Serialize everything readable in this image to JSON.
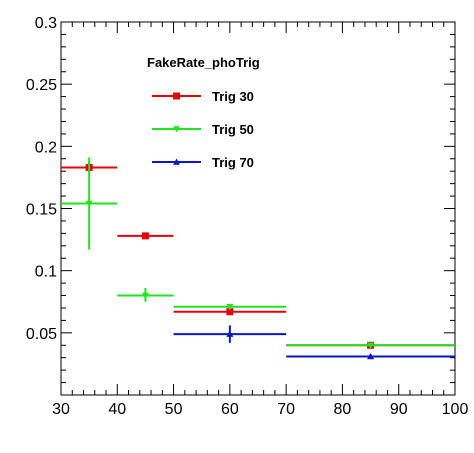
{
  "chart_data": {
    "type": "scatter",
    "title": "",
    "xlabel": "",
    "ylabel": "",
    "xlim": [
      30,
      100
    ],
    "ylim": [
      0,
      0.3
    ],
    "grid": false,
    "legend_placement": "top-left",
    "legend_title": "FakeRate_phoTrig",
    "x_ticks": [
      {
        "value": 30,
        "label": "30"
      },
      {
        "value": 40,
        "label": "40"
      },
      {
        "value": 50,
        "label": "50"
      },
      {
        "value": 60,
        "label": "60"
      },
      {
        "value": 70,
        "label": "70"
      },
      {
        "value": 80,
        "label": "80"
      },
      {
        "value": 90,
        "label": "90"
      },
      {
        "value": 100,
        "label": "100"
      }
    ],
    "y_ticks": [
      {
        "value": 0.05,
        "label": "0.05"
      },
      {
        "value": 0.1,
        "label": "0.1"
      },
      {
        "value": 0.15,
        "label": "0.15"
      },
      {
        "value": 0.2,
        "label": "0.2"
      },
      {
        "value": 0.25,
        "label": "0.25"
      },
      {
        "value": 0.3,
        "label": "0.3"
      }
    ],
    "series": [
      {
        "name": "Trig 30",
        "color": "#e8000b",
        "marker": "square",
        "points": [
          {
            "x": 35,
            "xlo": 30,
            "xhi": 40,
            "y": 0.183,
            "ylo": 0.179,
            "yhi": 0.187
          },
          {
            "x": 45,
            "xlo": 40,
            "xhi": 50,
            "y": 0.128,
            "ylo": 0.126,
            "yhi": 0.13
          },
          {
            "x": 60,
            "xlo": 50,
            "xhi": 70,
            "y": 0.067,
            "ylo": 0.066,
            "yhi": 0.068
          },
          {
            "x": 85,
            "xlo": 70,
            "xhi": 100,
            "y": 0.04,
            "ylo": 0.039,
            "yhi": 0.041
          }
        ]
      },
      {
        "name": "Trig 50",
        "color": "#1ee61e",
        "marker": "triangle-down",
        "points": [
          {
            "x": 35,
            "xlo": 30,
            "xhi": 40,
            "y": 0.154,
            "ylo": 0.117,
            "yhi": 0.191
          },
          {
            "x": 45,
            "xlo": 40,
            "xhi": 50,
            "y": 0.08,
            "ylo": 0.075,
            "yhi": 0.086
          },
          {
            "x": 60,
            "xlo": 50,
            "xhi": 70,
            "y": 0.071,
            "ylo": 0.069,
            "yhi": 0.073
          },
          {
            "x": 85,
            "xlo": 70,
            "xhi": 100,
            "y": 0.04,
            "ylo": 0.038,
            "yhi": 0.042
          }
        ]
      },
      {
        "name": "Trig 70",
        "color": "#0a14c8",
        "marker": "triangle-up",
        "points": [
          {
            "x": 60,
            "xlo": 50,
            "xhi": 70,
            "y": 0.049,
            "ylo": 0.042,
            "yhi": 0.056
          },
          {
            "x": 85,
            "xlo": 70,
            "xhi": 100,
            "y": 0.031,
            "ylo": 0.029,
            "yhi": 0.033
          }
        ]
      }
    ]
  }
}
